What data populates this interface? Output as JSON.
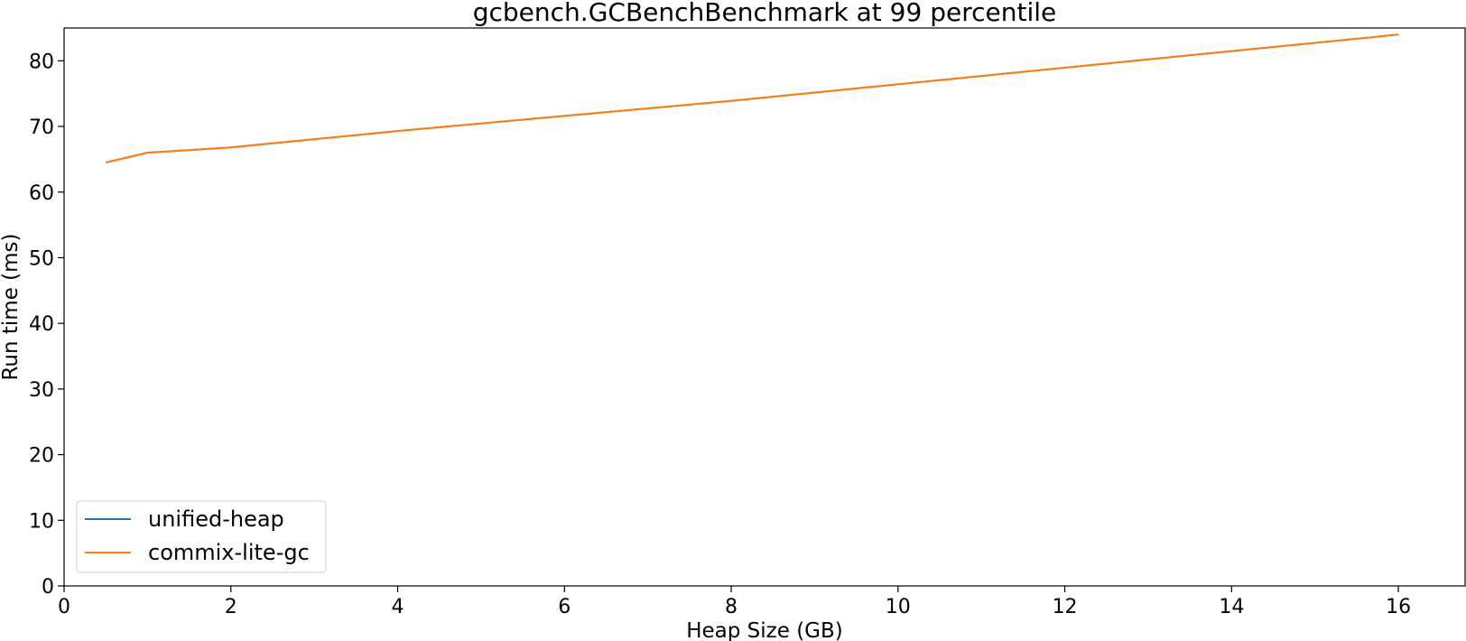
{
  "chart_data": {
    "type": "line",
    "title": "gcbench.GCBenchBenchmark at 99 percentile",
    "xlabel": "Heap Size (GB)",
    "ylabel": "Run time (ms)",
    "xlim": [
      0,
      16.8
    ],
    "ylim": [
      0,
      85
    ],
    "xticks": [
      0,
      2,
      4,
      6,
      8,
      10,
      12,
      14,
      16
    ],
    "yticks": [
      0,
      10,
      20,
      30,
      40,
      50,
      60,
      70,
      80
    ],
    "grid": false,
    "legend_position": "lower-left",
    "x": [
      0.5,
      1,
      2,
      4,
      8,
      16
    ],
    "series": [
      {
        "name": "unified-heap",
        "color": "#1f77b4",
        "values": [
          64.5,
          66.0,
          66.8,
          69.3,
          73.9,
          84.0
        ]
      },
      {
        "name": "commix-lite-gc",
        "color": "#ff7f0e",
        "values": [
          64.5,
          66.0,
          66.8,
          69.3,
          73.9,
          84.0
        ]
      }
    ]
  }
}
